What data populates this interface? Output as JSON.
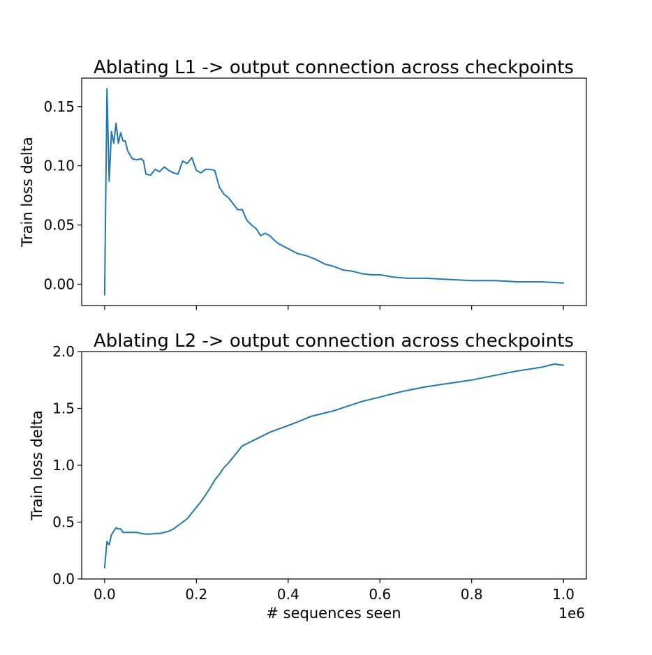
{
  "colors": {
    "series": "#1f77b4"
  },
  "x_offset_label": "1e6",
  "chart_data": [
    {
      "type": "line",
      "title": "Ablating L1 -> output connection across checkpoints",
      "xlabel": "",
      "ylabel": "Train loss delta",
      "xlim": [
        -0.05,
        1.05
      ],
      "ylim": [
        -0.018,
        0.174
      ],
      "xticks": [
        0.0,
        0.2,
        0.4,
        0.6,
        0.8,
        1.0
      ],
      "xtick_labels": [],
      "yticks": [
        0.0,
        0.05,
        0.1,
        0.15
      ],
      "ytick_labels": [
        "0.00",
        "0.05",
        "0.10",
        "0.15"
      ],
      "grid": false,
      "series": [
        {
          "x": [
            0.0,
            0.005,
            0.01,
            0.015,
            0.02,
            0.025,
            0.03,
            0.035,
            0.04,
            0.045,
            0.05,
            0.06,
            0.07,
            0.08,
            0.085,
            0.09,
            0.1,
            0.11,
            0.12,
            0.13,
            0.14,
            0.15,
            0.16,
            0.17,
            0.18,
            0.19,
            0.2,
            0.21,
            0.22,
            0.23,
            0.24,
            0.25,
            0.26,
            0.27,
            0.28,
            0.29,
            0.3,
            0.31,
            0.32,
            0.33,
            0.34,
            0.35,
            0.36,
            0.37,
            0.38,
            0.4,
            0.42,
            0.44,
            0.46,
            0.48,
            0.5,
            0.52,
            0.54,
            0.56,
            0.58,
            0.6,
            0.63,
            0.66,
            0.7,
            0.75,
            0.8,
            0.85,
            0.9,
            0.95,
            1.0
          ],
          "y": [
            -0.009,
            0.165,
            0.087,
            0.129,
            0.119,
            0.136,
            0.119,
            0.128,
            0.121,
            0.121,
            0.113,
            0.106,
            0.105,
            0.106,
            0.104,
            0.093,
            0.092,
            0.097,
            0.095,
            0.099,
            0.096,
            0.094,
            0.093,
            0.104,
            0.102,
            0.107,
            0.096,
            0.094,
            0.097,
            0.097,
            0.096,
            0.082,
            0.076,
            0.073,
            0.068,
            0.063,
            0.063,
            0.054,
            0.05,
            0.047,
            0.041,
            0.043,
            0.041,
            0.037,
            0.034,
            0.03,
            0.026,
            0.024,
            0.021,
            0.017,
            0.015,
            0.012,
            0.011,
            0.009,
            0.008,
            0.008,
            0.006,
            0.005,
            0.005,
            0.004,
            0.003,
            0.003,
            0.002,
            0.002,
            0.001
          ]
        }
      ]
    },
    {
      "type": "line",
      "title": "Ablating L2 -> output connection across checkpoints",
      "xlabel": "# sequences seen",
      "ylabel": "Train loss delta",
      "xlim": [
        -0.05,
        1.05
      ],
      "ylim": [
        0.0,
        2.0
      ],
      "xticks": [
        0.0,
        0.2,
        0.4,
        0.6,
        0.8,
        1.0
      ],
      "xtick_labels": [
        "0.0",
        "0.2",
        "0.4",
        "0.6",
        "0.8",
        "1.0"
      ],
      "yticks": [
        0.0,
        0.5,
        1.0,
        1.5,
        2.0
      ],
      "ytick_labels": [
        "0.0",
        "0.5",
        "1.0",
        "1.5",
        "2.0"
      ],
      "grid": false,
      "series": [
        {
          "x": [
            0.0,
            0.005,
            0.01,
            0.015,
            0.02,
            0.025,
            0.03,
            0.035,
            0.04,
            0.05,
            0.06,
            0.07,
            0.08,
            0.09,
            0.1,
            0.11,
            0.12,
            0.13,
            0.14,
            0.15,
            0.16,
            0.17,
            0.18,
            0.19,
            0.2,
            0.21,
            0.22,
            0.23,
            0.24,
            0.25,
            0.26,
            0.27,
            0.28,
            0.29,
            0.3,
            0.32,
            0.34,
            0.36,
            0.38,
            0.4,
            0.42,
            0.45,
            0.48,
            0.5,
            0.53,
            0.56,
            0.6,
            0.65,
            0.7,
            0.75,
            0.8,
            0.85,
            0.9,
            0.95,
            0.98,
            1.0
          ],
          "y": [
            0.1,
            0.33,
            0.3,
            0.39,
            0.42,
            0.45,
            0.44,
            0.44,
            0.41,
            0.41,
            0.41,
            0.41,
            0.4,
            0.395,
            0.395,
            0.4,
            0.4,
            0.41,
            0.42,
            0.44,
            0.47,
            0.5,
            0.53,
            0.58,
            0.63,
            0.68,
            0.74,
            0.8,
            0.87,
            0.92,
            0.98,
            1.02,
            1.07,
            1.12,
            1.17,
            1.21,
            1.25,
            1.29,
            1.32,
            1.35,
            1.38,
            1.43,
            1.46,
            1.48,
            1.52,
            1.56,
            1.6,
            1.65,
            1.69,
            1.72,
            1.75,
            1.79,
            1.83,
            1.86,
            1.89,
            1.88
          ]
        }
      ]
    }
  ]
}
